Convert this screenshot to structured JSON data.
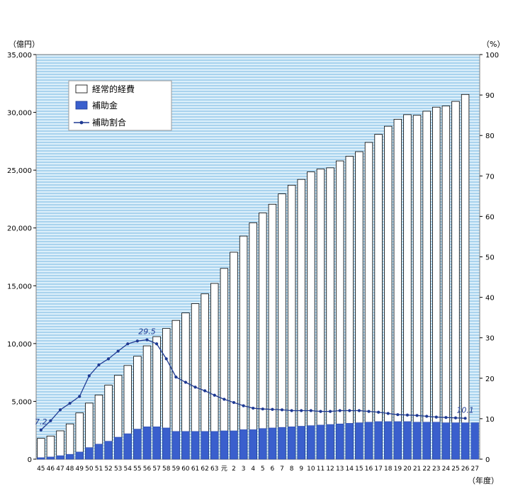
{
  "chart_data": {
    "type": "bar",
    "units": {
      "left": "（億円）",
      "right": "（%）",
      "x": "（年度）"
    },
    "yaxis_left": {
      "min": 0,
      "max": 35000,
      "ticks": [
        "0",
        "5,000",
        "10,000",
        "15,000",
        "20,000",
        "25,000",
        "30,000",
        "35,000"
      ]
    },
    "yaxis_right": {
      "min": 0,
      "max": 100,
      "ticks": [
        "0",
        "10",
        "20",
        "30",
        "40",
        "50",
        "60",
        "70",
        "80",
        "90",
        "100"
      ]
    },
    "categories": [
      "45",
      "46",
      "47",
      "48",
      "49",
      "50",
      "51",
      "52",
      "53",
      "54",
      "55",
      "56",
      "57",
      "58",
      "59",
      "60",
      "61",
      "62",
      "63",
      "元",
      "2",
      "3",
      "4",
      "5",
      "6",
      "7",
      "8",
      "9",
      "10",
      "11",
      "12",
      "13",
      "14",
      "15",
      "16",
      "17",
      "18",
      "19",
      "20",
      "21",
      "22",
      "23",
      "24",
      "25",
      "26",
      "27"
    ],
    "series": [
      {
        "name": "経常的経費",
        "kind": "bar",
        "axis": "left",
        "color": "#ffffff",
        "values": [
          1800,
          2000,
          2450,
          3050,
          4000,
          4850,
          5550,
          6400,
          7250,
          8100,
          8900,
          9800,
          10600,
          11300,
          12000,
          12650,
          13450,
          14300,
          15200,
          16500,
          17900,
          19300,
          20450,
          21300,
          22050,
          22950,
          23700,
          24200,
          24850,
          25100,
          25200,
          25800,
          26200,
          26600,
          27400,
          28100,
          28800,
          29400,
          29800,
          29750,
          30100,
          30450,
          30550,
          30950,
          31550,
          null
        ]
      },
      {
        "name": "補助金",
        "kind": "bar",
        "axis": "left",
        "color": "#3a5fcd",
        "values": [
          130,
          190,
          300,
          420,
          620,
          1000,
          1300,
          1550,
          1900,
          2200,
          2600,
          2800,
          2800,
          2700,
          2400,
          2400,
          2400,
          2400,
          2400,
          2450,
          2450,
          2550,
          2550,
          2650,
          2700,
          2750,
          2800,
          2850,
          2900,
          2950,
          3000,
          3050,
          3100,
          3150,
          3200,
          3250,
          3250,
          3250,
          3250,
          3200,
          3200,
          3200,
          3150,
          3150,
          3150,
          3150
        ]
      },
      {
        "name": "補助割合",
        "kind": "line",
        "axis": "right",
        "color": "#1f3a93",
        "values": [
          7.2,
          9.5,
          12.2,
          13.8,
          15.5,
          20.6,
          23.3,
          24.8,
          26.7,
          28.5,
          29.2,
          29.5,
          28.5,
          24.8,
          20.3,
          19.0,
          17.8,
          16.9,
          15.8,
          14.8,
          14.0,
          13.2,
          12.6,
          12.4,
          12.3,
          12.2,
          12.0,
          12.0,
          12.0,
          11.8,
          11.8,
          12.0,
          12.0,
          12.0,
          11.8,
          11.6,
          11.3,
          11.0,
          10.9,
          10.8,
          10.6,
          10.4,
          10.3,
          10.2,
          10.1,
          null
        ]
      }
    ],
    "data_labels": [
      {
        "series": "補助割合",
        "category": "45",
        "text": "7.2"
      },
      {
        "series": "補助割合",
        "category": "56",
        "text": "29.5"
      },
      {
        "series": "補助割合",
        "category": "26",
        "text": "10.1"
      }
    ],
    "legend": {
      "position": "top-left",
      "items": [
        "経常的経費",
        "補助金",
        "補助割合"
      ]
    },
    "background": "striped-blue",
    "grid": false
  }
}
